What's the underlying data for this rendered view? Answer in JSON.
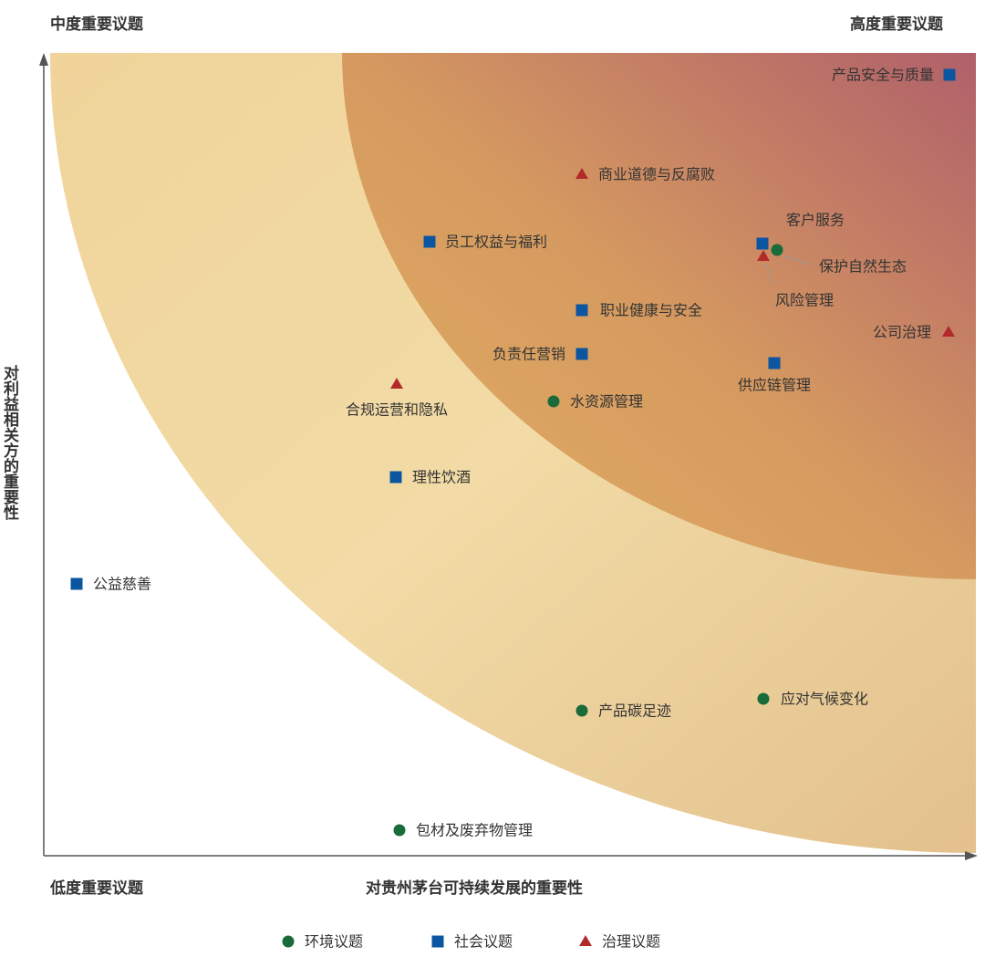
{
  "corner_labels": {
    "top_left": "中度重要议题",
    "top_right": "高度重要议题",
    "bottom_left": "低度重要议题"
  },
  "x_axis_label": "对贵州茅台可持续发展的重要性",
  "y_axis_label": "对利益相关方的重要性",
  "groups": [
    {
      "label": "环境议题",
      "color": "#1a6b3a",
      "issues": [
        {
          "label": "保护自然生态"
        },
        {
          "label": "水资源管理"
        },
        {
          "label": "产品碳足迹"
        },
        {
          "label": "应对气候变化"
        },
        {
          "label": "包材及废弃物管理"
        }
      ]
    },
    {
      "label": "社会议题",
      "color": "#0c55a0",
      "issues": [
        {
          "label": "产品安全与质量"
        },
        {
          "label": "客户服务"
        },
        {
          "label": "员工权益与福利"
        },
        {
          "label": "职业健康与安全"
        },
        {
          "label": "负责任营销"
        },
        {
          "label": "供应链管理"
        },
        {
          "label": "理性饮酒"
        },
        {
          "label": "公益慈善"
        }
      ]
    },
    {
      "label": "治理议题",
      "color": "#b22a2a",
      "issues": [
        {
          "label": "商业道德与反腐败"
        },
        {
          "label": "风险管理"
        },
        {
          "label": "公司治理"
        },
        {
          "label": "合规运营和隐私"
        }
      ]
    }
  ]
}
